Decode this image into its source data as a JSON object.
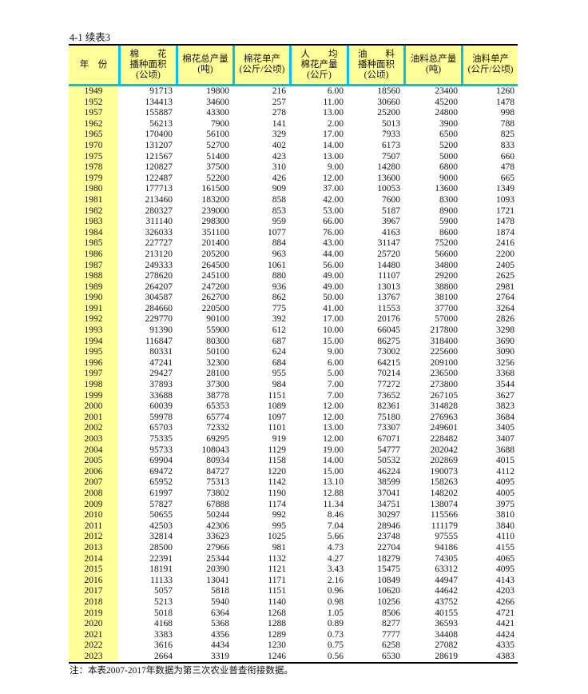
{
  "title": "4-1 续表3",
  "headers": [
    "年　份",
    "棉　　花\n播种面积\n(公顷)",
    "棉花总产量\n(吨)",
    "棉花单产\n(公斤/公顷)",
    "人　　均\n棉花产量\n(公斤)",
    "油　　料\n播种面积\n(公顷)",
    "油料总产量\n(吨)",
    "油料单产\n(公斤/公顷)"
  ],
  "rows": [
    [
      "1949",
      "91713",
      "19800",
      "216",
      "6.00",
      "18560",
      "23400",
      "1260"
    ],
    [
      "1952",
      "134413",
      "34600",
      "257",
      "11.00",
      "30660",
      "45200",
      "1478"
    ],
    [
      "1957",
      "155887",
      "43300",
      "278",
      "13.00",
      "25200",
      "24800",
      "998"
    ],
    [
      "1962",
      "56213",
      "7900",
      "141",
      "2.00",
      "5013",
      "3900",
      "788"
    ],
    [
      "1965",
      "170400",
      "56100",
      "329",
      "17.00",
      "7933",
      "6500",
      "825"
    ],
    [
      "1970",
      "131207",
      "52700",
      "402",
      "14.00",
      "6173",
      "5200",
      "833"
    ],
    [
      "1975",
      "121567",
      "51400",
      "423",
      "13.00",
      "7507",
      "5000",
      "660"
    ],
    [
      "1978",
      "120827",
      "37500",
      "310",
      "9.00",
      "14280",
      "6800",
      "478"
    ],
    [
      "1979",
      "122487",
      "52200",
      "426",
      "12.00",
      "13600",
      "9000",
      "665"
    ],
    [
      "1980",
      "177713",
      "161500",
      "909",
      "37.00",
      "10053",
      "13600",
      "1349"
    ],
    [
      "1981",
      "213460",
      "183200",
      "858",
      "42.00",
      "7600",
      "8300",
      "1093"
    ],
    [
      "1982",
      "280327",
      "239000",
      "853",
      "53.00",
      "5187",
      "8900",
      "1721"
    ],
    [
      "1983",
      "311140",
      "298300",
      "959",
      "66.00",
      "3967",
      "5900",
      "1478"
    ],
    [
      "1984",
      "326033",
      "351100",
      "1077",
      "76.00",
      "4163",
      "8600",
      "1874"
    ],
    [
      "1985",
      "227727",
      "201400",
      "884",
      "43.00",
      "31147",
      "75200",
      "2416"
    ],
    [
      "1986",
      "213120",
      "205200",
      "963",
      "44.00",
      "25720",
      "56600",
      "2200"
    ],
    [
      "1987",
      "249333",
      "264500",
      "1061",
      "56.00",
      "14480",
      "34800",
      "2405"
    ],
    [
      "1988",
      "278620",
      "245100",
      "880",
      "49.00",
      "11107",
      "29200",
      "2625"
    ],
    [
      "1989",
      "264207",
      "247200",
      "936",
      "49.00",
      "13013",
      "38800",
      "2981"
    ],
    [
      "1990",
      "304587",
      "262700",
      "862",
      "50.00",
      "13767",
      "38100",
      "2764"
    ],
    [
      "1991",
      "284660",
      "220500",
      "775",
      "41.00",
      "11553",
      "37700",
      "3264"
    ],
    [
      "1992",
      "229770",
      "90100",
      "392",
      "17.00",
      "20176",
      "57000",
      "2826"
    ],
    [
      "1993",
      "91390",
      "55900",
      "612",
      "10.00",
      "66045",
      "217800",
      "3298"
    ],
    [
      "1994",
      "116847",
      "80300",
      "687",
      "15.00",
      "86275",
      "318400",
      "3690"
    ],
    [
      "1995",
      "80331",
      "50100",
      "624",
      "9.00",
      "73002",
      "225600",
      "3090"
    ],
    [
      "1996",
      "47241",
      "32300",
      "684",
      "6.00",
      "64215",
      "209100",
      "3256"
    ],
    [
      "1997",
      "29427",
      "28100",
      "955",
      "5.00",
      "70214",
      "236500",
      "3368"
    ],
    [
      "1998",
      "37893",
      "37300",
      "984",
      "7.00",
      "77272",
      "273800",
      "3544"
    ],
    [
      "1999",
      "33688",
      "38778",
      "1151",
      "7.00",
      "73652",
      "267105",
      "3627"
    ],
    [
      "2000",
      "60039",
      "65353",
      "1089",
      "12.00",
      "82361",
      "314828",
      "3823"
    ],
    [
      "2001",
      "59978",
      "65774",
      "1097",
      "12.00",
      "75180",
      "276963",
      "3684"
    ],
    [
      "2002",
      "65703",
      "72332",
      "1101",
      "13.00",
      "73307",
      "249601",
      "3405"
    ],
    [
      "2003",
      "75335",
      "69295",
      "919",
      "12.00",
      "67071",
      "228482",
      "3407"
    ],
    [
      "2004",
      "95733",
      "108043",
      "1129",
      "19.00",
      "54777",
      "202042",
      "3688"
    ],
    [
      "2005",
      "69904",
      "80934",
      "1158",
      "14.00",
      "50532",
      "202869",
      "4015"
    ],
    [
      "2006",
      "69472",
      "84727",
      "1220",
      "15.00",
      "46224",
      "190073",
      "4112"
    ],
    [
      "2007",
      "65952",
      "75313",
      "1142",
      "13.10",
      "38599",
      "158263",
      "4095"
    ],
    [
      "2008",
      "61997",
      "73802",
      "1190",
      "12.88",
      "37041",
      "148202",
      "4005"
    ],
    [
      "2009",
      "57827",
      "67888",
      "1174",
      "11.34",
      "34751",
      "138074",
      "3975"
    ],
    [
      "2010",
      "50655",
      "50244",
      "992",
      "8.46",
      "30297",
      "115566",
      "3810"
    ],
    [
      "2011",
      "42503",
      "42306",
      "995",
      "7.04",
      "28946",
      "111179",
      "3840"
    ],
    [
      "2012",
      "32814",
      "33623",
      "1025",
      "5.66",
      "23748",
      "97555",
      "4110"
    ],
    [
      "2013",
      "28500",
      "27966",
      "981",
      "4.73",
      "22704",
      "94186",
      "4155"
    ],
    [
      "2014",
      "22391",
      "25344",
      "1132",
      "4.27",
      "18279",
      "74305",
      "4065"
    ],
    [
      "2015",
      "18191",
      "20390",
      "1121",
      "3.43",
      "15475",
      "63312",
      "4095"
    ],
    [
      "2016",
      "11133",
      "13041",
      "1171",
      "2.16",
      "10849",
      "44947",
      "4143"
    ],
    [
      "2017",
      "5057",
      "5818",
      "1151",
      "0.96",
      "10620",
      "44642",
      "4203"
    ],
    [
      "2018",
      "5213",
      "5940",
      "1140",
      "0.98",
      "10256",
      "43752",
      "4266"
    ],
    [
      "2019",
      "5018",
      "6364",
      "1268",
      "1.05",
      "8506",
      "40155",
      "4721"
    ],
    [
      "2020",
      "4168",
      "5368",
      "1288",
      "0.89",
      "8277",
      "36593",
      "4421"
    ],
    [
      "2021",
      "3383",
      "4356",
      "1289",
      "0.73",
      "7777",
      "34408",
      "4424"
    ],
    [
      "2022",
      "3616",
      "4434",
      "1230",
      "0.75",
      "6258",
      "27082",
      "4335"
    ],
    [
      "2023",
      "2664",
      "3319",
      "1246",
      "0.56",
      "6530",
      "28619",
      "4383"
    ]
  ],
  "note": "注：本表2007-2017年数据为第三次农业普查衔接数据。",
  "colors": {
    "header_bg": "#ffff99",
    "year_bg": "#ffff99",
    "divider": "#00c0f0"
  }
}
